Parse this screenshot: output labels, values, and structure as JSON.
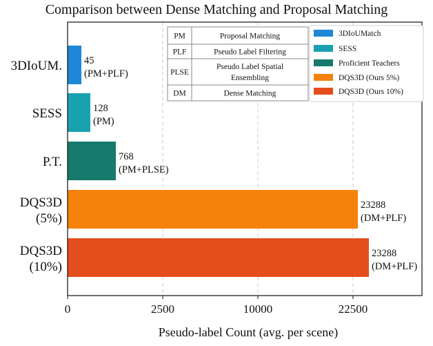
{
  "chart_data": {
    "type": "bar",
    "orientation": "horizontal",
    "title": "Comparison between Dense Matching and Proposal Matching",
    "xlabel": "Pseudo-label Count (avg. per scene)",
    "ylabel": "",
    "xlim": [
      0,
      24500
    ],
    "xticks": [
      0,
      2500,
      10000,
      22500
    ],
    "xtick_labels": [
      "0",
      "2500",
      "10000",
      "22500"
    ],
    "x_axis_scale": "nonlinear (ticks at 0, 2500, 10000, 22500)",
    "grid": "vertical dashed",
    "categories": [
      "3DIoUM.",
      "SESS",
      "P.T.",
      "DQS3D (5%)",
      "DQS3D (10%)"
    ],
    "category_lines": [
      [
        "3DIoUM."
      ],
      [
        "SESS"
      ],
      [
        "P.T."
      ],
      [
        "DQS3D",
        "(5%)"
      ],
      [
        "DQS3D",
        "(10%)"
      ]
    ],
    "values": [
      45,
      128,
      768,
      23288,
      23288
    ],
    "value_labels": [
      "45",
      "128",
      "768",
      "23288",
      "23288"
    ],
    "methods": [
      "(PM+PLF)",
      "(PM)",
      "(PM+PLSE)",
      "(DM+PLF)",
      "(DM+PLF)"
    ],
    "colors": [
      "#1e88d6",
      "#1aa1b0",
      "#167a6c",
      "#f5820b",
      "#e44e1c"
    ],
    "legend": {
      "placement": "top-right",
      "entries": [
        {
          "name": "3DIoUMatch",
          "color": "#1e88d6"
        },
        {
          "name": "SESS",
          "color": "#1aa1b0"
        },
        {
          "name": "Proficient Teachers",
          "color": "#167a6c"
        },
        {
          "name": "DQS3D (Ours 5%)",
          "color": "#f5820b"
        },
        {
          "name": "DQS3D (Ours 10%)",
          "color": "#e44e1c"
        }
      ]
    },
    "abbreviation_table": [
      {
        "abbr": "PM",
        "desc": [
          "Proposal Matching"
        ]
      },
      {
        "abbr": "PLF",
        "desc": [
          "Pseudo Label Filtering"
        ]
      },
      {
        "abbr": "PLSE",
        "desc": [
          "Pseudo Label Spatial",
          "Ensembling"
        ]
      },
      {
        "abbr": "DM",
        "desc": [
          "Dense Matching"
        ]
      }
    ]
  }
}
